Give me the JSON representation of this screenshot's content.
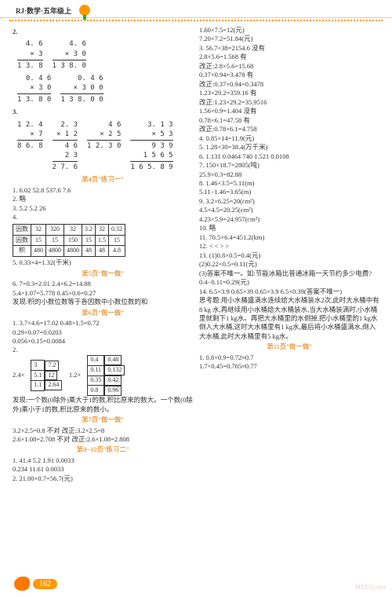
{
  "hdr": {
    "title": "RJ·数学·五年级上"
  },
  "left": {
    "n2": "2.",
    "calcs2": [
      {
        "a": "4. 6",
        "b": "×    3",
        "r": "1 3. 8"
      },
      {
        "a": "4. 6",
        "b": "×  3 0",
        "r": "1 3 8. 0"
      },
      {
        "a": "0. 4 6",
        "b": "×    3 0",
        "r": "1 3. 8 0"
      },
      {
        "a": "0. 4 6",
        "b": "×  3 0 0",
        "r": "1 3 8. 0 0"
      }
    ],
    "n3": "3.",
    "calcs3": [
      {
        "a": "1 2. 4",
        "b": "×    7",
        "r": "8 6. 8"
      },
      {
        "a": "2. 3",
        "b": "× 1 2",
        "m1": "4 6",
        "m2": "2 3",
        "r": "2 7. 6"
      },
      {
        "a": "4 6",
        "b": "× 2 5",
        "m1": "1 2. 3 0",
        "r": ""
      },
      {
        "a": "3. 1 3",
        "b": "×    5 3",
        "m1": "9 3 9",
        "m2": "1 5 6 5",
        "r": "1 6 5. 8 9"
      }
    ],
    "h4": "第4页\"练习一\"",
    "l1": "1. 6.02  52.8  537.6  7.6",
    "l2": "2. 略",
    "l3": "3. 5.2  5.2  26",
    "l4": "4.",
    "tbl4": {
      "r1": [
        "因数",
        "32",
        "320",
        "32",
        "3.2",
        "32",
        "0.32"
      ],
      "r2": [
        "因数",
        "15",
        "15",
        "150",
        "15",
        "1.5",
        "15"
      ],
      "r3": [
        "积",
        "480",
        "4800",
        "4800",
        "48",
        "48",
        "4.8"
      ]
    },
    "l5": "5. 0.33×4=1.32(千米)",
    "h5": "第5页\"做一做\"",
    "l6a": "6. 7×0.3=2.01  2.4×6.2=14.88",
    "l6b": "5.4×1.07=5.778  0.45×0.6=0.27",
    "l6c": "发现:积的小数位数等于各因数中小数位数的和",
    "h6": "第6页\"做一做\"",
    "l7a": "1. 3.7×4.6=17.02  0.48×1.5=0.72",
    "l7b": "  0.29×0.07=0.0203",
    "l7c": "  0.056×0.15=0.0084",
    "l8": "2.",
    "tbl8a": {
      "rows": [
        [
          "3",
          "7.2"
        ],
        [
          "5.1",
          "12"
        ],
        [
          "1.1",
          "2.64"
        ]
      ]
    },
    "tbl8av": "2.4×",
    "tbl8b": {
      "rows": [
        [
          "0.4",
          "0.48"
        ],
        [
          "0.11",
          "0.132"
        ],
        [
          "0.35",
          "0.42"
        ],
        [
          "0.8",
          "0.96"
        ]
      ]
    },
    "tbl8bv": "1.2×",
    "l8t": "发现:一个数(0除外)乘大于1的数,积比原来的数大。一个数(0除外)乘小于1的数,积比原来的数小。",
    "h7": "第7页\"做一做\"",
    "l9a": "3.2×2.5=0.8 不对  改正:3.2×2.5=8",
    "l9b": "2.6×1.08=2.708  不对  改正:2.6×1.08=2.808",
    "h8": "第8~10页\"练习二\"",
    "l10a": "1. 41.4  5.2  1.91  0.0033",
    "l10b": "  0.234  11.61  0.0033",
    "l10c": "2. 21.00×0.7=56.7(元)"
  },
  "right": {
    "r1": "1.60×7.5=12(元)",
    "r2": "7.20×7.2=51.84(元)",
    "r3": "3. 56.7×38=2154.6  没有",
    "r3a": "  2.8×5.6=1.568  有",
    "r3b": "  改正:2.8×5.6=15.68",
    "r3c": "  0.37×0.94=3.478  有",
    "r3d": "  改正:0.37×0.94=0.3478",
    "r3e": "  1.23×29.2=359.16  有",
    "r3f": "  改正:1.23×29.2=35.9516",
    "r3g": "  1.56×0.9=1.404  没有",
    "r3h": "  0.78×6.1=47.58  有",
    "r3i": "  改正:0.78×6.1=4.758",
    "r4": "4. 0.85×14=11.9(元)",
    "r5": "5. 1.28×30=38.4(万千米)",
    "r6": "6. 1.131    0.0464    740    1.521    0.0108",
    "r7": "7. 150×18.7=2805(吨)",
    "r7a": "  25.9×0.3=82.88",
    "r8": "8. 1.46×3.5=5.11(m)",
    "r8a": "  5.11−1.46=3.65(m)",
    "r9": "9. 3.2×6.25=20(cm²)",
    "r9a": "  4.5×4.5=20.25(cm²)",
    "r9b": "  4.23×5.9=24.957(cm²)",
    "r10": "10. 略",
    "r11": "11. 70.5×6.4=451.2(km)",
    "r12": "12. <  <  >  >",
    "r13": "13. (1)0.8×0.5=0.4(元)",
    "r13a": "  (2)0.22×0.5=0.11(元)",
    "r13b": "  (3)答案不唯一。如:节能冰箱比普通冰箱一天节约多少电费?",
    "r13c": "  0.4−0.11=0.29(元)",
    "r14": "14. 6.5×3.9  0.65×39  0.65×3.9  6.5×0.39(答案不唯一)",
    "r15": "思考题:用小水桶盛满水连续给大水桶装水2次,此时大水桶中有8 kg 水,再继续用小水桶给大水桶装水,当大水桶装满时,小水桶里就剩下1 kg水。再把大水桶里的水倒掉,把小水桶里的1 kg水倒入大水桶,这时大水桶里有1 kg水,最后将小水桶盛满水,倒入大水桶,此时大水桶里有5 kg水。",
    "h11": "第11页\"做一做\"",
    "r16": "1. 0.8×0.9=0.72≈0.7",
    "r16a": "  1.7×0.45=0.765≈0.77"
  },
  "pg": "162",
  "wm": "MXEQ.com"
}
